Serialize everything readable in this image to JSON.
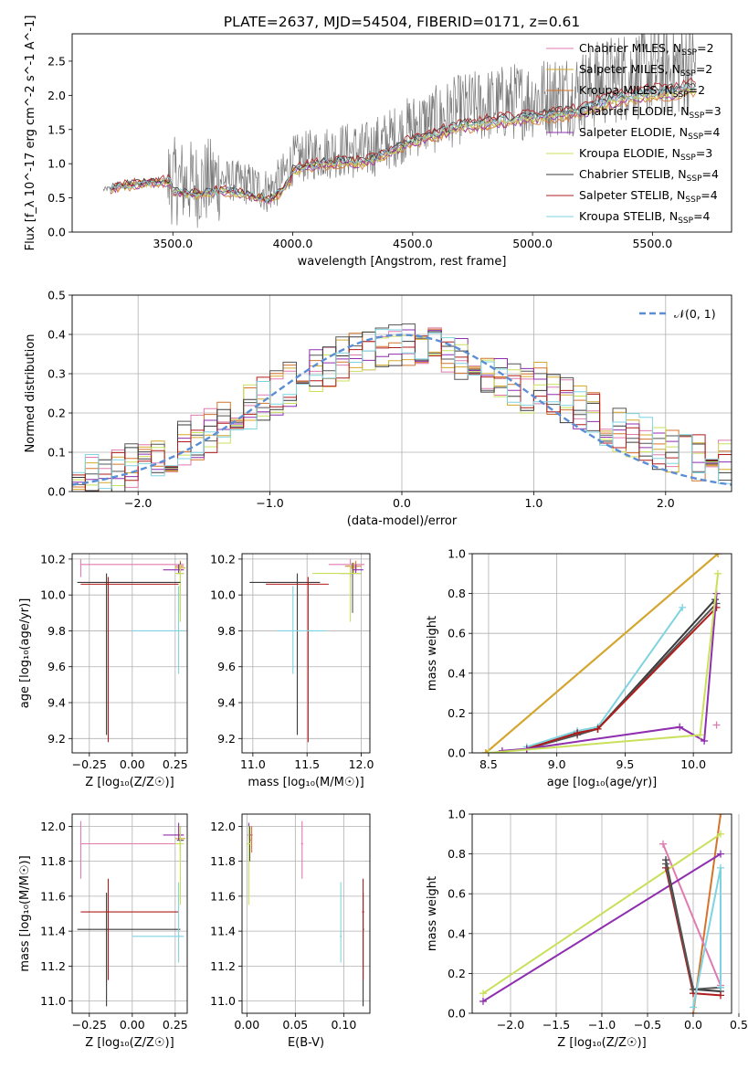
{
  "figure_title": "PLATE=2637, MJD=54504, FIBERID=0171, z=0.61",
  "palette": {
    "Chabrier MILES": "#e07aaf",
    "Salpeter MILES": "#d4a82c",
    "Kroupa MILES": "#d4732c",
    "Chabrier ELODIE": "#555555",
    "Salpeter ELODIE": "#8f2fb0",
    "Kroupa ELODIE": "#c9e05a",
    "Chabrier STELIB": "#3a3a3a",
    "Salpeter STELIB": "#b01c1c",
    "Kroupa STELIB": "#7fd3e0",
    "data": "#7a7a7a",
    "gaussian": "#5b8ed6"
  },
  "chart_data": [
    {
      "id": "spectrum",
      "type": "line",
      "title": "PLATE=2637, MJD=54504, FIBERID=0171, z=0.61",
      "xlabel": "wavelength [Angstrom, rest frame]",
      "ylabel": "Flux [f_λ 10^-17 erg cm^-2 s^-1 A^-1]",
      "xlim": [
        3080,
        5830
      ],
      "ylim": [
        0,
        2.9
      ],
      "xticks": [
        3500,
        4000,
        4500,
        5000,
        5500
      ],
      "yticks": [
        0.0,
        0.5,
        1.0,
        1.5,
        2.0,
        2.5
      ],
      "grid": false,
      "legend_position": "top-right",
      "legend": [
        {
          "base": "Chabrier MILES, N",
          "sub": "SSP",
          "tail": "=2"
        },
        {
          "base": "Salpeter MILES, N",
          "sub": "SSP",
          "tail": "=2"
        },
        {
          "base": "Kroupa MILES, N",
          "sub": "SSP",
          "tail": "=2"
        },
        {
          "base": "Chabrier ELODIE, N",
          "sub": "SSP",
          "tail": "=3"
        },
        {
          "base": "Salpeter ELODIE, N",
          "sub": "SSP",
          "tail": "=4"
        },
        {
          "base": "Kroupa ELODIE, N",
          "sub": "SSP",
          "tail": "=3"
        },
        {
          "base": "Chabrier STELIB, N",
          "sub": "SSP",
          "tail": "=4"
        },
        {
          "base": "Salpeter STELIB, N",
          "sub": "SSP",
          "tail": "=4"
        },
        {
          "base": "Kroupa STELIB, N",
          "sub": "SSP",
          "tail": "=4"
        }
      ],
      "data_range": [
        3210,
        5680
      ],
      "continuum": [
        [
          3210,
          0.62
        ],
        [
          3300,
          0.68
        ],
        [
          3400,
          0.72
        ],
        [
          3500,
          0.75
        ],
        [
          3600,
          0.7
        ],
        [
          3700,
          0.78
        ],
        [
          3800,
          0.72
        ],
        [
          3900,
          0.6
        ],
        [
          3950,
          0.75
        ],
        [
          4000,
          1.05
        ],
        [
          4100,
          1.15
        ],
        [
          4200,
          1.2
        ],
        [
          4300,
          1.18
        ],
        [
          4400,
          1.35
        ],
        [
          4500,
          1.55
        ],
        [
          4600,
          1.65
        ],
        [
          4700,
          1.8
        ],
        [
          4800,
          1.85
        ],
        [
          4900,
          1.9
        ],
        [
          5000,
          1.95
        ],
        [
          5100,
          2.0
        ],
        [
          5200,
          2.05
        ],
        [
          5300,
          2.2
        ],
        [
          5400,
          2.3
        ],
        [
          5500,
          2.35
        ],
        [
          5600,
          2.4
        ],
        [
          5680,
          2.45
        ]
      ],
      "model_factors": {
        "Chabrier MILES": 1.0,
        "Salpeter MILES": 0.98,
        "Kroupa MILES": 0.96,
        "Chabrier ELODIE": 1.02,
        "Salpeter ELODIE": 0.97,
        "Kroupa ELODIE": 0.99,
        "Chabrier STELIB": 1.03,
        "Salpeter STELIB": 1.05,
        "Kroupa STELIB": 1.01
      }
    },
    {
      "id": "residuals",
      "type": "histogram",
      "xlabel": "(data-model)/error",
      "ylabel": "Normed distribution",
      "xlim": [
        -2.5,
        2.5
      ],
      "ylim": [
        0,
        0.5
      ],
      "xticks": [
        -2,
        -1,
        0,
        1,
        2
      ],
      "yticks": [
        0.0,
        0.1,
        0.2,
        0.3,
        0.4,
        0.5
      ],
      "grid": true,
      "legend_position": "top-right",
      "gaussian_label": "𝒩(0, 1)",
      "bin_width": 0.1
    },
    {
      "id": "z-age",
      "type": "errorbar",
      "xlabel": "Z [log₁₀(Z/Z☉)]",
      "ylabel": "age  [log₁₀(age/yr)]",
      "xlim": [
        -0.35,
        0.32
      ],
      "ylim": [
        9.12,
        10.23
      ],
      "xticks": [
        -0.25,
        0.0,
        0.25
      ],
      "xticklabels": [
        "−0.25",
        "0.00",
        "0.25"
      ],
      "yticks": [
        9.2,
        9.4,
        9.6,
        9.8,
        10.0,
        10.2
      ],
      "grid": true
    },
    {
      "id": "mass-age",
      "type": "errorbar",
      "xlabel": "mass [log₁₀(M/M☉)]",
      "ylabel": "",
      "xlim": [
        10.9,
        12.08
      ],
      "ylim": [
        9.12,
        10.23
      ],
      "xticks": [
        11.0,
        11.5,
        12.0
      ],
      "yticks": [
        9.2,
        9.4,
        9.6,
        9.8,
        10.0,
        10.2
      ],
      "grid": true
    },
    {
      "id": "age-massweight",
      "type": "line",
      "xlabel": "age  [log₁₀(age/yr)]",
      "ylabel": "mass weight",
      "xlim": [
        8.38,
        10.28
      ],
      "ylim": [
        0,
        1
      ],
      "xticks": [
        8.5,
        9.0,
        9.5,
        10.0
      ],
      "yticks": [
        0.0,
        0.2,
        0.4,
        0.6,
        0.8,
        1.0
      ],
      "grid": true,
      "series": [
        {
          "model": "Kroupa MILES",
          "x": [
            8.48,
            10.18
          ],
          "y": [
            0.0,
            1.0
          ]
        },
        {
          "model": "Salpeter MILES",
          "x": [
            8.48,
            10.18
          ],
          "y": [
            0.0,
            1.0
          ]
        },
        {
          "model": "Chabrier MILES",
          "x": [
            10.17
          ],
          "y": [
            0.14
          ]
        },
        {
          "model": "Kroupa STELIB",
          "x": [
            8.78,
            9.15,
            9.3,
            9.92
          ],
          "y": [
            0.03,
            0.11,
            0.13,
            0.73
          ]
        },
        {
          "model": "Chabrier STELIB",
          "x": [
            8.78,
            9.15,
            9.3,
            10.16
          ],
          "y": [
            0.02,
            0.1,
            0.12,
            0.77
          ]
        },
        {
          "model": "Chabrier ELODIE",
          "x": [
            8.78,
            9.15,
            9.3,
            10.17
          ],
          "y": [
            0.02,
            0.09,
            0.12,
            0.75
          ]
        },
        {
          "model": "Salpeter STELIB",
          "x": [
            8.78,
            9.15,
            9.3,
            10.17
          ],
          "y": [
            0.02,
            0.1,
            0.12,
            0.73
          ]
        },
        {
          "model": "Salpeter ELODIE",
          "x": [
            8.6,
            8.78,
            9.9,
            10.08,
            10.17
          ],
          "y": [
            0.01,
            0.02,
            0.13,
            0.06,
            0.8
          ]
        },
        {
          "model": "Kroupa ELODIE",
          "x": [
            8.5,
            10.05,
            10.18
          ],
          "y": [
            0.0,
            0.09,
            0.9
          ]
        }
      ]
    },
    {
      "id": "z-mass",
      "type": "errorbar",
      "xlabel": "Z [log₁₀(Z/Z☉)]",
      "ylabel": "mass [log₁₀(M/M☉)]",
      "xlim": [
        -0.35,
        0.32
      ],
      "ylim": [
        10.93,
        12.07
      ],
      "xticks": [
        -0.25,
        0.0,
        0.25
      ],
      "xticklabels": [
        "−0.25",
        "0.00",
        "0.25"
      ],
      "yticks": [
        11.0,
        11.2,
        11.4,
        11.6,
        11.8,
        12.0
      ],
      "grid": true
    },
    {
      "id": "ebv-mass",
      "type": "errorbar",
      "xlabel": "E(B-V)",
      "ylabel": "",
      "xlim": [
        -0.005,
        0.127
      ],
      "ylim": [
        10.93,
        12.07
      ],
      "xticks": [
        0.0,
        0.05,
        0.1
      ],
      "xticklabels": [
        "0.00",
        "0.05",
        "0.10"
      ],
      "yticks": [
        11.0,
        11.2,
        11.4,
        11.6,
        11.8,
        12.0
      ],
      "grid": true
    },
    {
      "id": "z-massweight",
      "type": "line",
      "xlabel": "Z [log₁₀(Z/Z☉)]",
      "ylabel": "mass weight",
      "xlim": [
        -2.42,
        0.42
      ],
      "ylim": [
        0,
        1
      ],
      "xticks": [
        -2.0,
        -1.5,
        -1.0,
        -0.5,
        0.0,
        0.5
      ],
      "xticklabels": [
        "−2.0",
        "−1.5",
        "−1.0",
        "−0.5",
        "0.0",
        "0.5"
      ],
      "yticks": [
        0.0,
        0.2,
        0.4,
        0.6,
        0.8,
        1.0
      ],
      "grid": true,
      "series": [
        {
          "model": "Kroupa MILES",
          "x": [
            0.0,
            0.3
          ],
          "y": [
            0.0,
            1.0
          ]
        },
        {
          "model": "Chabrier MILES",
          "x": [
            -0.33,
            0.3
          ],
          "y": [
            0.85,
            0.14
          ]
        },
        {
          "model": "Kroupa ELODIE",
          "x": [
            -2.3,
            0.3
          ],
          "y": [
            0.1,
            0.9
          ]
        },
        {
          "model": "Salpeter ELODIE",
          "x": [
            -2.3,
            0.3
          ],
          "y": [
            0.06,
            0.8
          ]
        },
        {
          "model": "Chabrier STELIB",
          "x": [
            -0.3,
            0.0,
            0.3
          ],
          "y": [
            0.77,
            0.12,
            0.11
          ]
        },
        {
          "model": "Salpeter STELIB",
          "x": [
            -0.3,
            0.0,
            0.3
          ],
          "y": [
            0.73,
            0.1,
            0.09
          ]
        },
        {
          "model": "Chabrier ELODIE",
          "x": [
            -0.3,
            0.0,
            0.3
          ],
          "y": [
            0.75,
            0.12,
            0.13
          ]
        },
        {
          "model": "Kroupa STELIB",
          "x": [
            0.0,
            0.3,
            0.3
          ],
          "y": [
            0.03,
            0.73,
            0.13
          ]
        }
      ]
    }
  ],
  "estimates": [
    {
      "model": "Chabrier MILES",
      "Z": [
        -0.3,
        0.3,
        -0.3
      ],
      "age": [
        10.17,
        10.1,
        10.2
      ],
      "mass": [
        11.9,
        11.7,
        12.03
      ],
      "ebv": [
        0.057,
        0.056,
        0.058
      ]
    },
    {
      "model": "Salpeter MILES",
      "Z": [
        0.28,
        0.25,
        0.31
      ],
      "age": [
        10.15,
        10.12,
        10.18
      ],
      "mass": [
        11.93,
        11.9,
        11.96
      ],
      "ebv": [
        0.003,
        0.002,
        0.004
      ]
    },
    {
      "model": "Kroupa MILES",
      "Z": [
        0.28,
        0.25,
        0.3
      ],
      "age": [
        10.16,
        10.13,
        10.19
      ],
      "mass": [
        11.95,
        11.85,
        12.0
      ],
      "ebv": [
        0.005,
        0.004,
        0.006
      ]
    },
    {
      "model": "Chabrier ELODIE",
      "Z": [
        0.28,
        0.26,
        0.3
      ],
      "age": [
        10.12,
        9.9,
        10.18
      ],
      "mass": [
        11.92,
        11.8,
        12.0
      ],
      "ebv": [
        0.003,
        0.002,
        0.004
      ]
    },
    {
      "model": "Salpeter ELODIE",
      "Z": [
        0.27,
        0.18,
        0.3
      ],
      "age": [
        10.14,
        10.12,
        10.17
      ],
      "mass": [
        11.95,
        11.92,
        12.02
      ],
      "ebv": [
        0.002,
        0.001,
        0.004
      ]
    },
    {
      "model": "Kroupa ELODIE",
      "Z": [
        0.28,
        0.25,
        0.3
      ],
      "age": [
        10.12,
        9.85,
        10.17
      ],
      "mass": [
        11.9,
        11.55,
        12.0
      ],
      "ebv": [
        0.002,
        0.0,
        0.004
      ]
    },
    {
      "model": "Chabrier STELIB",
      "Z": [
        -0.15,
        -0.32,
        0.28
      ],
      "age": [
        10.07,
        9.22,
        10.12
      ],
      "mass": [
        11.41,
        10.97,
        11.62
      ],
      "ebv": [
        0.12,
        0.12,
        0.121
      ]
    },
    {
      "model": "Salpeter STELIB",
      "Z": [
        -0.14,
        -0.3,
        0.27
      ],
      "age": [
        10.06,
        9.18,
        10.1
      ],
      "mass": [
        11.51,
        11.12,
        11.7
      ],
      "ebv": [
        0.12,
        0.119,
        0.121
      ]
    },
    {
      "model": "Kroupa STELIB",
      "Z": [
        0.27,
        0.0,
        0.3
      ],
      "age": [
        9.8,
        9.56,
        10.05
      ],
      "mass": [
        11.37,
        11.22,
        11.68
      ],
      "ebv": [
        0.097,
        0.096,
        0.098
      ]
    }
  ]
}
